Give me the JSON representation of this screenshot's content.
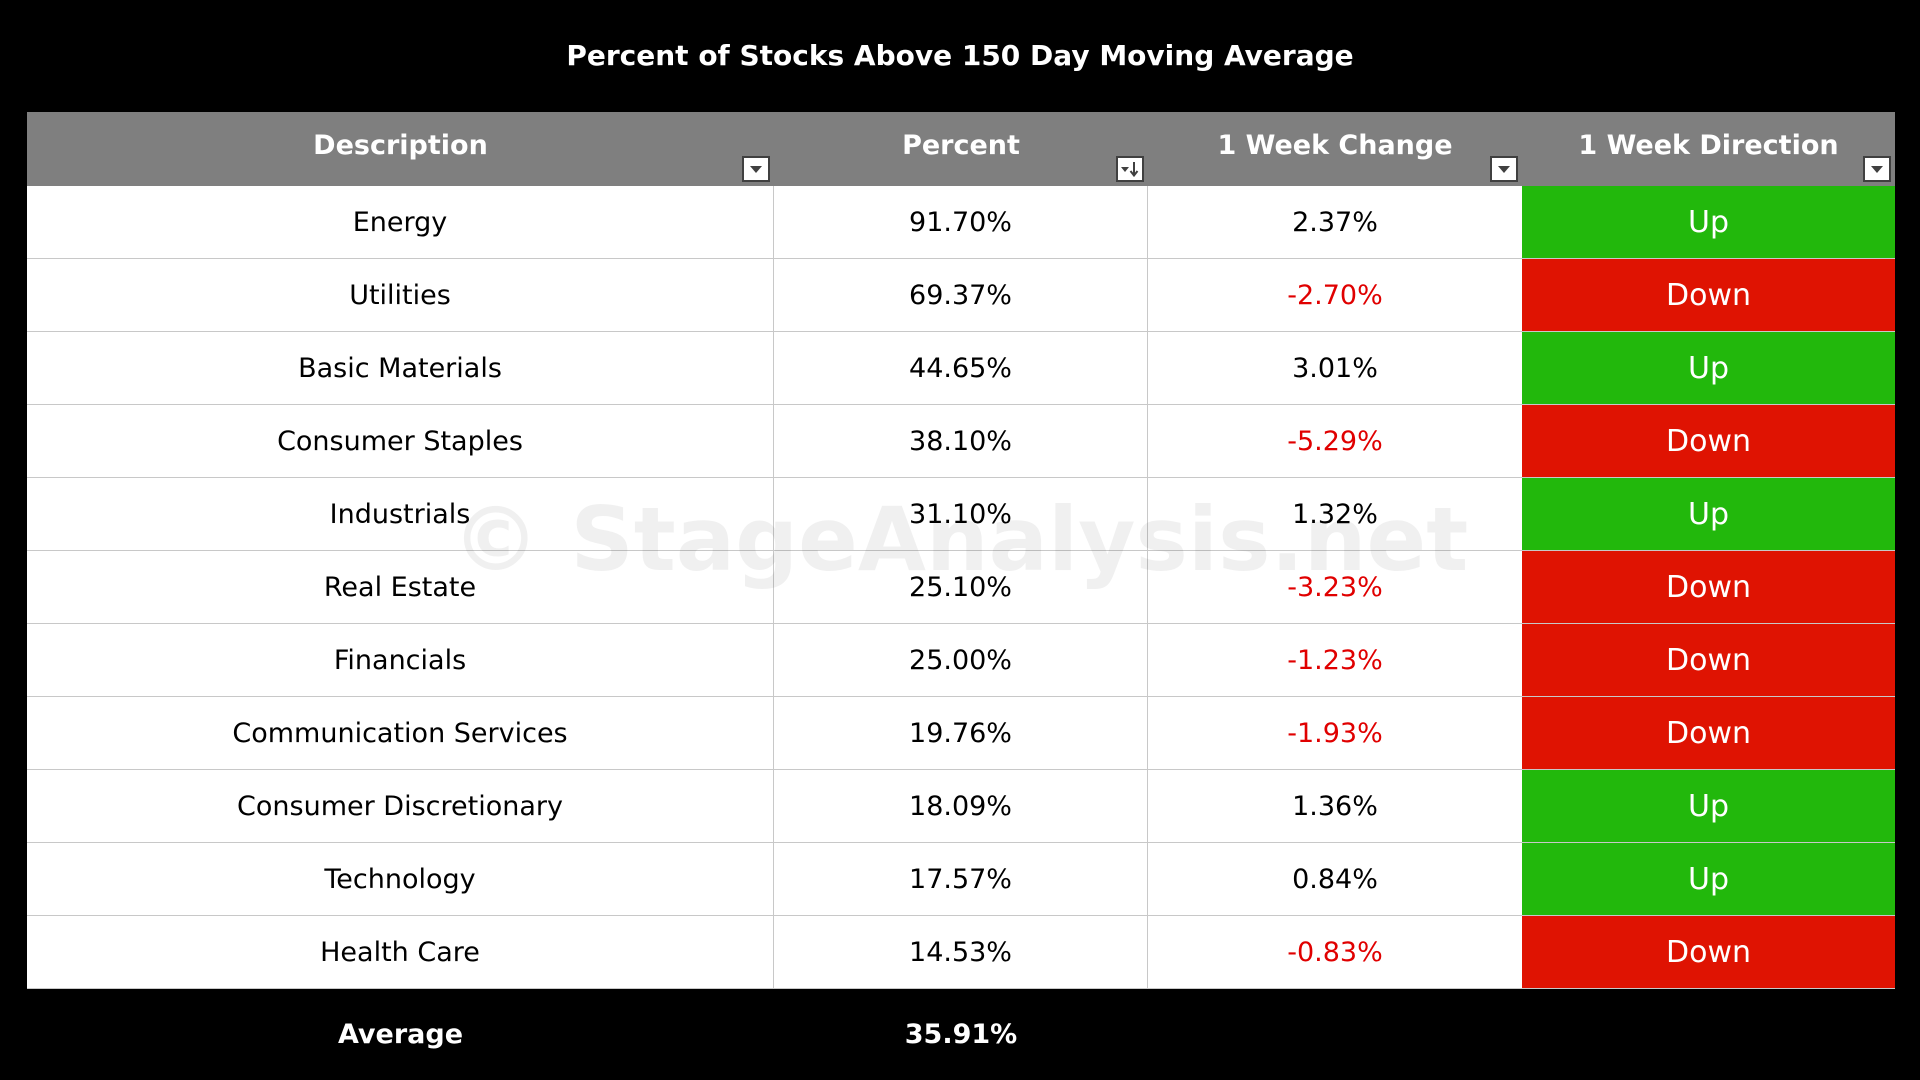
{
  "chart_data": {
    "type": "table",
    "title": "Percent of Stocks Above 150 Day Moving Average",
    "columns": [
      "Description",
      "Percent",
      "1 Week Change",
      "1 Week Direction"
    ],
    "rows": [
      {
        "description": "Energy",
        "percent": "91.70%",
        "change": "2.37%",
        "direction": "Up"
      },
      {
        "description": "Utilities",
        "percent": "69.37%",
        "change": "-2.70%",
        "direction": "Down"
      },
      {
        "description": "Basic Materials",
        "percent": "44.65%",
        "change": "3.01%",
        "direction": "Up"
      },
      {
        "description": "Consumer Staples",
        "percent": "38.10%",
        "change": "-5.29%",
        "direction": "Down"
      },
      {
        "description": "Industrials",
        "percent": "31.10%",
        "change": "1.32%",
        "direction": "Up"
      },
      {
        "description": "Real Estate",
        "percent": "25.10%",
        "change": "-3.23%",
        "direction": "Down"
      },
      {
        "description": "Financials",
        "percent": "25.00%",
        "change": "-1.23%",
        "direction": "Down"
      },
      {
        "description": "Communication Services",
        "percent": "19.76%",
        "change": "-1.93%",
        "direction": "Down"
      },
      {
        "description": "Consumer Discretionary",
        "percent": "18.09%",
        "change": "1.36%",
        "direction": "Up"
      },
      {
        "description": "Technology",
        "percent": "17.57%",
        "change": "0.84%",
        "direction": "Up"
      },
      {
        "description": "Health Care",
        "percent": "14.53%",
        "change": "-0.83%",
        "direction": "Down"
      }
    ],
    "footer": {
      "label": "Average",
      "percent": "35.91%"
    },
    "sort": {
      "column": "Percent",
      "order": "descending"
    }
  },
  "watermark": "© StageAnalysis.net",
  "colors": {
    "header_bg": "#7f7f7f",
    "up_bg": "#22b80c",
    "down_bg": "#df1302",
    "negative_text": "#e00000"
  },
  "icons": {
    "filter": "filter-dropdown-icon",
    "sort": "sort-descending-icon"
  }
}
